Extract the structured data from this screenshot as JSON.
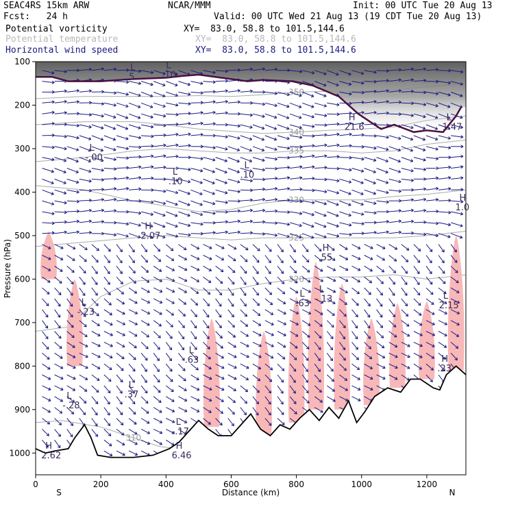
{
  "header": {
    "line1_left": "SEAC4RS 15km ARW",
    "line1_center": "NCAR/MMM",
    "line1_right": "Init: 00 UTC Tue 20 Aug 13",
    "line2_left": "Fcst:   24 h",
    "line2_right": "Valid: 00 UTC Wed 21 Aug 13 (19 CDT Tue 20 Aug 13)",
    "fields": [
      {
        "name": "Potential vorticity",
        "xy": "XY=  83.0, 58.8 to 101.5,144.6",
        "color": "#000000"
      },
      {
        "name": "Potential temperature",
        "xy": "XY=  83.0, 58.8 to 101.5,144.6",
        "color": "#b8b8b8"
      },
      {
        "name": "Horizontal wind speed",
        "xy": "XY=  83.0, 58.8 to 101.5,144.6",
        "color": "#1a1a80"
      }
    ]
  },
  "chart_data": {
    "type": "cross-section",
    "ylabel": "Pressure (hPa)",
    "xlabel": "Distance (km)",
    "xlim": [
      0,
      1320
    ],
    "ylim": [
      1050,
      100
    ],
    "x_ticks": [
      0,
      200,
      400,
      600,
      800,
      1000,
      1200
    ],
    "y_ticks": [
      100,
      200,
      300,
      400,
      500,
      600,
      700,
      800,
      900,
      1000
    ],
    "x_end_labels": {
      "left": "S",
      "right": "N"
    },
    "terrain": [
      [
        0,
        990
      ],
      [
        30,
        1000
      ],
      [
        60,
        995
      ],
      [
        100,
        990
      ],
      [
        120,
        965
      ],
      [
        150,
        935
      ],
      [
        170,
        965
      ],
      [
        190,
        1005
      ],
      [
        230,
        1010
      ],
      [
        300,
        1010
      ],
      [
        360,
        1005
      ],
      [
        410,
        990
      ],
      [
        440,
        975
      ],
      [
        470,
        950
      ],
      [
        500,
        925
      ],
      [
        530,
        945
      ],
      [
        560,
        960
      ],
      [
        600,
        960
      ],
      [
        630,
        935
      ],
      [
        660,
        910
      ],
      [
        690,
        945
      ],
      [
        720,
        960
      ],
      [
        750,
        935
      ],
      [
        780,
        945
      ],
      [
        810,
        920
      ],
      [
        840,
        900
      ],
      [
        870,
        925
      ],
      [
        900,
        895
      ],
      [
        930,
        920
      ],
      [
        960,
        880
      ],
      [
        985,
        930
      ],
      [
        1010,
        905
      ],
      [
        1040,
        870
      ],
      [
        1080,
        850
      ],
      [
        1120,
        860
      ],
      [
        1150,
        830
      ],
      [
        1180,
        830
      ],
      [
        1220,
        850
      ],
      [
        1240,
        855
      ],
      [
        1260,
        820
      ],
      [
        1290,
        800
      ],
      [
        1320,
        820
      ]
    ],
    "theta_contours": [
      {
        "label": "320",
        "points": [
          [
            0,
            720
          ],
          [
            100,
            710
          ],
          [
            200,
            640
          ],
          [
            300,
            605
          ],
          [
            400,
            600
          ],
          [
            500,
            625
          ],
          [
            600,
            625
          ],
          [
            700,
            610
          ],
          [
            800,
            600
          ],
          [
            900,
            595
          ],
          [
            1000,
            595
          ],
          [
            1100,
            590
          ],
          [
            1200,
            600
          ],
          [
            1320,
            590
          ]
        ]
      },
      {
        "label": "325",
        "points": [
          [
            0,
            525
          ],
          [
            150,
            515
          ],
          [
            300,
            505
          ],
          [
            400,
            500
          ],
          [
            500,
            505
          ],
          [
            600,
            510
          ],
          [
            700,
            505
          ],
          [
            800,
            505
          ],
          [
            900,
            505
          ],
          [
            1000,
            505
          ],
          [
            1100,
            505
          ],
          [
            1200,
            500
          ],
          [
            1320,
            490
          ]
        ]
      },
      {
        "label": "330",
        "points": [
          [
            0,
            385
          ],
          [
            150,
            395
          ],
          [
            300,
            420
          ],
          [
            400,
            432
          ],
          [
            500,
            445
          ],
          [
            600,
            440
          ],
          [
            700,
            425
          ],
          [
            800,
            418
          ],
          [
            900,
            418
          ],
          [
            1000,
            418
          ],
          [
            1100,
            410
          ],
          [
            1200,
            405
          ],
          [
            1320,
            395
          ]
        ]
      },
      {
        "label": "335",
        "points": [
          [
            0,
            330
          ],
          [
            150,
            320
          ],
          [
            300,
            305
          ],
          [
            400,
            300
          ],
          [
            500,
            305
          ],
          [
            600,
            310
          ],
          [
            700,
            310
          ],
          [
            800,
            305
          ],
          [
            900,
            305
          ],
          [
            1000,
            310
          ],
          [
            1100,
            305
          ],
          [
            1200,
            290
          ],
          [
            1320,
            280
          ]
        ]
      },
      {
        "label": "340",
        "points": [
          [
            0,
            245
          ],
          [
            150,
            238
          ],
          [
            300,
            238
          ],
          [
            400,
            245
          ],
          [
            500,
            255
          ],
          [
            600,
            260
          ],
          [
            700,
            265
          ],
          [
            800,
            262
          ],
          [
            900,
            258
          ],
          [
            1000,
            255
          ],
          [
            1100,
            250
          ],
          [
            1200,
            235
          ],
          [
            1320,
            225
          ]
        ]
      },
      {
        "label": "350",
        "points": [
          [
            0,
            185
          ],
          [
            150,
            180
          ],
          [
            300,
            180
          ],
          [
            400,
            180
          ],
          [
            500,
            178
          ],
          [
            600,
            180
          ],
          [
            700,
            176
          ],
          [
            800,
            170
          ],
          [
            900,
            168
          ],
          [
            1000,
            168
          ],
          [
            1100,
            165
          ],
          [
            1200,
            158
          ],
          [
            1320,
            150
          ]
        ]
      },
      {
        "label": "310",
        "points": [
          [
            0,
            930
          ],
          [
            80,
            925
          ],
          [
            200,
            940
          ],
          [
            300,
            965
          ],
          [
            380,
            985
          ],
          [
            440,
            990
          ]
        ]
      }
    ],
    "tropopause": [
      [
        0,
        135
      ],
      [
        50,
        135
      ],
      [
        100,
        145
      ],
      [
        200,
        145
      ],
      [
        300,
        140
      ],
      [
        400,
        137
      ],
      [
        450,
        133
      ],
      [
        500,
        130
      ],
      [
        570,
        137
      ],
      [
        650,
        145
      ],
      [
        700,
        142
      ],
      [
        790,
        145
      ],
      [
        850,
        155
      ],
      [
        930,
        180
      ],
      [
        990,
        220
      ],
      [
        1030,
        240
      ],
      [
        1060,
        255
      ],
      [
        1100,
        245
      ],
      [
        1160,
        262
      ],
      [
        1200,
        258
      ],
      [
        1250,
        262
      ],
      [
        1290,
        225
      ],
      [
        1305,
        205
      ]
    ],
    "pv_anomalies": [
      {
        "x": 120,
        "ptop": 600,
        "pbot": 800
      },
      {
        "x": 40,
        "ptop": 490,
        "pbot": 600
      },
      {
        "x": 540,
        "ptop": 690,
        "pbot": 940
      },
      {
        "x": 700,
        "ptop": 720,
        "pbot": 960
      },
      {
        "x": 800,
        "ptop": 640,
        "pbot": 930
      },
      {
        "x": 860,
        "ptop": 560,
        "pbot": 900
      },
      {
        "x": 940,
        "ptop": 610,
        "pbot": 900
      },
      {
        "x": 1030,
        "ptop": 690,
        "pbot": 890
      },
      {
        "x": 1110,
        "ptop": 655,
        "pbot": 850
      },
      {
        "x": 1200,
        "ptop": 650,
        "pbot": 830
      },
      {
        "x": 1290,
        "ptop": 500,
        "pbot": 810
      }
    ],
    "extrema_labels": [
      {
        "kind": "H",
        "value": "2.07",
        "x": 335,
        "p": 485
      },
      {
        "kind": "L",
        "value": "-.00",
        "x": 165,
        "p": 305
      },
      {
        "kind": "L",
        "value": ".10",
        "x": 420,
        "p": 360
      },
      {
        "kind": "L",
        "value": ".10",
        "x": 640,
        "p": 345
      },
      {
        "kind": "L",
        "value": "-.23",
        "x": 140,
        "p": 660
      },
      {
        "kind": "L",
        "value": "-.28",
        "x": 95,
        "p": 875
      },
      {
        "kind": "L",
        "value": ".37",
        "x": 285,
        "p": 850
      },
      {
        "kind": "L",
        "value": ".63",
        "x": 470,
        "p": 770
      },
      {
        "kind": "L",
        "value": "-.17",
        "x": 430,
        "p": 935
      },
      {
        "kind": "L",
        "value": ".63",
        "x": 810,
        "p": 640
      },
      {
        "kind": "L",
        "value": "-.13",
        "x": 870,
        "p": 630
      },
      {
        "kind": "H",
        "value": ".55",
        "x": 880,
        "p": 535
      },
      {
        "kind": "L",
        "value": "2.15",
        "x": 1250,
        "p": 645
      },
      {
        "kind": "H",
        "value": "1.0",
        "x": 1300,
        "p": 420
      },
      {
        "kind": "H",
        "value": ".23",
        "x": 1245,
        "p": 790
      },
      {
        "kind": "H",
        "value": "6.46",
        "x": 430,
        "p": 990
      },
      {
        "kind": "H",
        "value": "2.62",
        "x": 30,
        "p": 990
      },
      {
        "kind": "H",
        "value": "21.6",
        "x": 960,
        "p": 235
      },
      {
        "kind": "L",
        "value": "1.47",
        "x": 1260,
        "p": 235
      },
      {
        "kind": "L",
        "value": ".10",
        "x": 400,
        "p": 115
      },
      {
        "kind": "L",
        "value": ".5",
        "x": 290,
        "p": 120
      }
    ]
  }
}
